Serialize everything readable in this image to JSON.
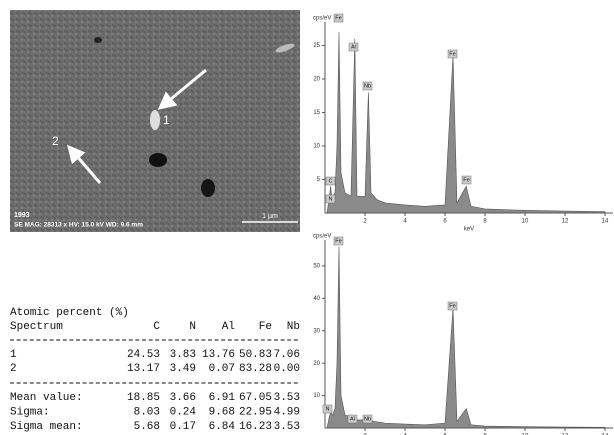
{
  "image": {
    "number": "1993",
    "info": "SE  MAG: 28313 x  HV: 15.0 kV  WD: 9.6 mm",
    "scale": "1 µm",
    "point_labels": [
      "1",
      "2"
    ]
  },
  "chart_data": [
    {
      "type": "area",
      "y_label": "cps/eV",
      "x_label": "keV",
      "color": "#8a8a8a",
      "peak_labels": [
        "Fe",
        "Al",
        "Nb",
        "Fe",
        "Fe",
        "C",
        "N"
      ],
      "x": [
        0.1,
        0.2,
        0.28,
        0.35,
        0.39,
        0.5,
        0.6,
        0.7,
        0.8,
        1.0,
        1.3,
        1.49,
        1.6,
        2.0,
        2.17,
        2.3,
        2.6,
        3.0,
        4.0,
        5.0,
        6.0,
        6.4,
        6.6,
        7.06,
        7.3,
        8,
        9,
        10,
        12,
        14
      ],
      "values": [
        0,
        2,
        4,
        2,
        2.5,
        3,
        10,
        27,
        6,
        3,
        2.5,
        26,
        2.5,
        2.5,
        18,
        3,
        2,
        1.5,
        1.2,
        1.0,
        1.2,
        23.5,
        1.5,
        4,
        1,
        0.6,
        0.5,
        0.4,
        0.3,
        0.2
      ],
      "xlim": [
        0,
        14.4
      ],
      "ylim": [
        0,
        28.5
      ],
      "xticks": [
        2,
        4,
        6,
        8,
        10,
        12,
        14
      ],
      "yticks": [
        5,
        10,
        15,
        20,
        25
      ]
    },
    {
      "type": "area",
      "y_label": "cps/eV",
      "color": "#8a8a8a",
      "peak_labels": [
        "Fe",
        "Fe",
        "Al",
        "Nb",
        "N"
      ],
      "x": [
        0.1,
        0.2,
        0.28,
        0.39,
        0.5,
        0.6,
        0.7,
        0.8,
        1.0,
        1.49,
        1.6,
        2.17,
        2.5,
        3,
        4,
        5,
        6,
        6.4,
        6.6,
        7.06,
        7.3,
        8,
        10,
        12,
        14
      ],
      "values": [
        0,
        3,
        5,
        4,
        6,
        20,
        56,
        10,
        4,
        3,
        2.5,
        2.5,
        2,
        1.5,
        1.2,
        1,
        1.5,
        37,
        2,
        6,
        1,
        0.6,
        0.4,
        0.3,
        0.2
      ],
      "xlim": [
        0,
        14.4
      ],
      "ylim": [
        0,
        58
      ],
      "xticks": [
        2,
        4,
        6,
        8,
        10,
        12,
        14
      ],
      "yticks": [
        10,
        20,
        30,
        40,
        50
      ]
    }
  ],
  "table": {
    "title": "Atomic percent (%)",
    "header": [
      "Spectrum",
      "C",
      "N",
      "Al",
      "Fe",
      "Nb"
    ],
    "rows": [
      [
        "1",
        "24.53",
        "3.83",
        "13.76",
        "50.83",
        "7.06"
      ],
      [
        "2",
        "13.17",
        "3.49",
        "0.07",
        "83.28",
        "0.00"
      ]
    ],
    "summary": [
      [
        "Mean value:",
        "18.85",
        "3.66",
        "6.91",
        "67.05",
        "3.53"
      ],
      [
        "Sigma:",
        "8.03",
        "0.24",
        "9.68",
        "22.95",
        "4.99"
      ],
      [
        "Sigma mean:",
        "5.68",
        "0.17",
        "6.84",
        "16.23",
        "3.53"
      ]
    ]
  }
}
